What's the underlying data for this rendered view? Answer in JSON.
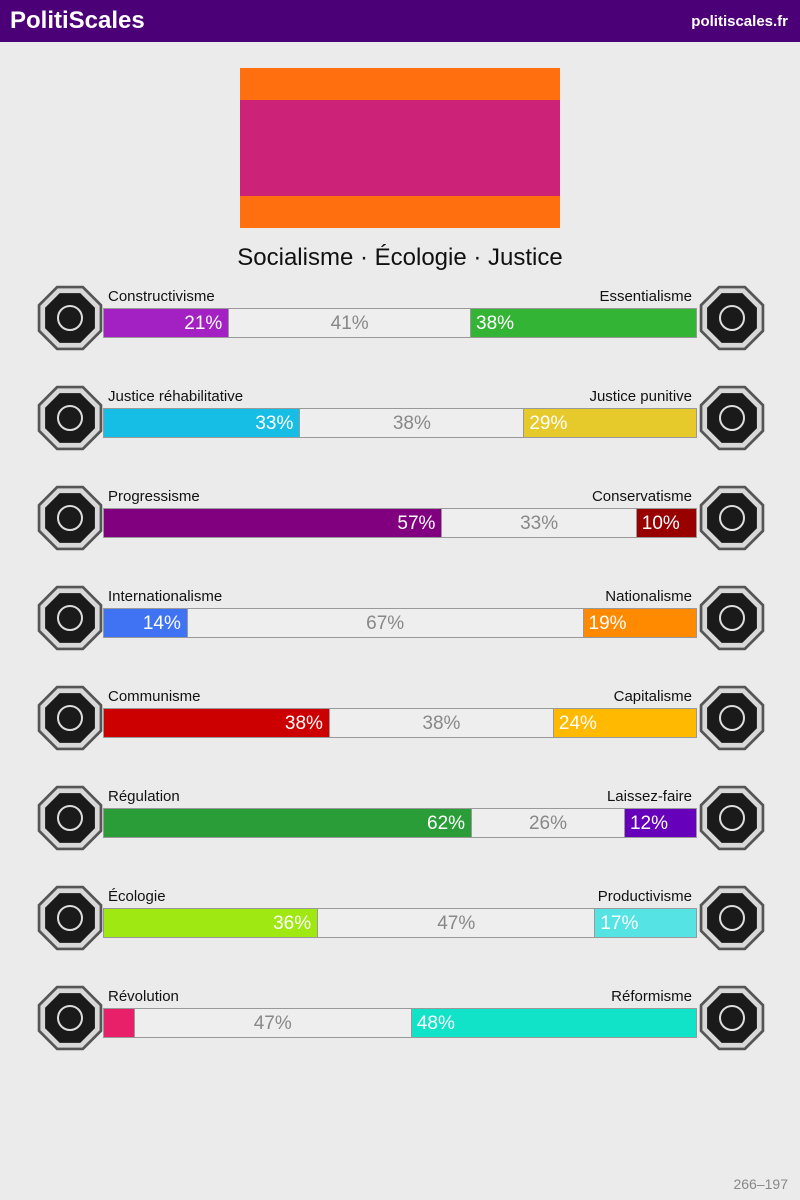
{
  "header": {
    "title": "PolitiScales",
    "url": "politiscales.fr"
  },
  "slogan": "Socialisme · Écologie · Justice",
  "scales": [
    {
      "left": "Constructivisme",
      "right": "Essentialisme",
      "values": [
        21,
        41,
        38
      ],
      "value_labels": [
        "21%",
        "41%",
        "38%"
      ],
      "colors": [
        "#a321c2",
        "#34b434"
      ]
    },
    {
      "left": "Justice réhabilitative",
      "right": "Justice punitive",
      "values": [
        33,
        38,
        29
      ],
      "value_labels": [
        "33%",
        "38%",
        "29%"
      ],
      "colors": [
        "#16bde5",
        "#e6c92a"
      ]
    },
    {
      "left": "Progressisme",
      "right": "Conservatisme",
      "values": [
        57,
        33,
        10
      ],
      "value_labels": [
        "57%",
        "33%",
        "10%"
      ],
      "colors": [
        "#800080",
        "#990000"
      ]
    },
    {
      "left": "Internationalisme",
      "right": "Nationalisme",
      "values": [
        14,
        67,
        19
      ],
      "value_labels": [
        "14%",
        "67%",
        "19%"
      ],
      "colors": [
        "#3f73f3",
        "#ff8a00"
      ]
    },
    {
      "left": "Communisme",
      "right": "Capitalisme",
      "values": [
        38,
        38,
        24
      ],
      "value_labels": [
        "38%",
        "38%",
        "24%"
      ],
      "colors": [
        "#cc0000",
        "#ffba00"
      ]
    },
    {
      "left": "Régulation",
      "right": "Laissez-faire",
      "values": [
        62,
        26,
        12
      ],
      "value_labels": [
        "62%",
        "26%",
        "12%"
      ],
      "colors": [
        "#2a9d38",
        "#6600bb"
      ]
    },
    {
      "left": "Écologie",
      "right": "Productivisme",
      "values": [
        36,
        47,
        17
      ],
      "value_labels": [
        "36%",
        "47%",
        "17%"
      ],
      "colors": [
        "#a0e812",
        "#55e3e3"
      ]
    },
    {
      "left": "Révolution",
      "right": "Réformisme",
      "values": [
        5,
        47,
        48
      ],
      "value_labels": [
        null,
        "47%",
        "48%"
      ],
      "colors": [
        "#e8206a",
        "#10e3c8"
      ]
    }
  ],
  "footer": "266–197"
}
